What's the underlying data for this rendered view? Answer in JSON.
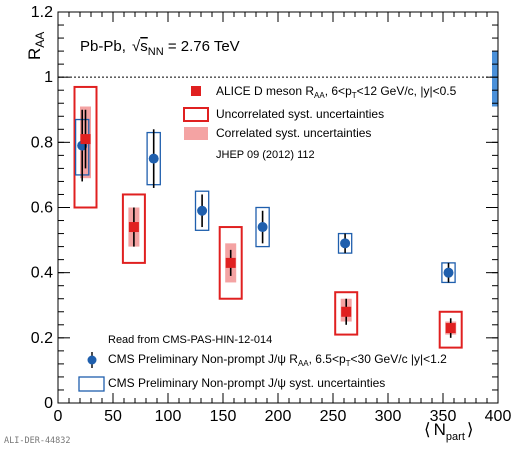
{
  "chart_data": {
    "type": "scatter",
    "annotation": "Pb-Pb, √sNN = 2.76 TeV",
    "annotation_parts": {
      "pre": "Pb-Pb, ",
      "s": "s",
      "nn": "NN",
      "post": " = 2.76 TeV"
    },
    "ylabel": {
      "main": "R",
      "sub": "AA"
    },
    "xlabel": {
      "lang": "⟨",
      "main": "N",
      "sub": "part",
      "rang": "⟩"
    },
    "xlim": [
      0,
      400
    ],
    "ylim": [
      0,
      1.2
    ],
    "x_ticks": [
      "0",
      "50",
      "100",
      "150",
      "200",
      "250",
      "300",
      "350",
      "400"
    ],
    "y_ticks": [
      "0",
      "0.2",
      "0.4",
      "0.6",
      "0.8",
      "1",
      "1.2"
    ],
    "reference_line": 1,
    "series": [
      {
        "name": "ALICE D meson R_AA, 6<pT<12 GeV/c, |y|<0.5",
        "marker": "square",
        "color": "#e02020",
        "x": [
          25,
          69,
          157,
          262,
          357
        ],
        "y": [
          0.81,
          0.54,
          0.43,
          0.28,
          0.23
        ],
        "stat_err": [
          0.09,
          0.06,
          0.04,
          0.04,
          0.03
        ],
        "uncorr_syst_box": {
          "half_width": [
            10,
            10,
            10,
            10,
            10
          ],
          "lo": [
            0.6,
            0.43,
            0.32,
            0.21,
            0.17
          ],
          "hi": [
            0.97,
            0.64,
            0.54,
            0.34,
            0.28
          ]
        },
        "corr_syst_box": {
          "half_width": [
            5,
            5,
            5,
            5,
            5
          ],
          "lo": [
            0.69,
            0.48,
            0.37,
            0.25,
            0.21
          ],
          "hi": [
            0.91,
            0.6,
            0.49,
            0.32,
            0.25
          ]
        }
      },
      {
        "name": "CMS Preliminary Non-prompt J/ψ R_AA, 6.5<pT<30 GeV/c |y|<1.2",
        "marker": "circle",
        "color": "#1f5fad",
        "x": [
          22,
          87,
          131,
          186,
          261,
          355
        ],
        "y": [
          0.79,
          0.75,
          0.59,
          0.54,
          0.49,
          0.4
        ],
        "stat_err": [
          0.11,
          0.09,
          0.05,
          0.05,
          0.03,
          0.03
        ],
        "syst_box": {
          "half_width": [
            6,
            6,
            6,
            6,
            6,
            6
          ],
          "lo": [
            0.7,
            0.67,
            0.53,
            0.48,
            0.46,
            0.37
          ],
          "hi": [
            0.87,
            0.83,
            0.65,
            0.6,
            0.52,
            0.43
          ]
        }
      }
    ],
    "legend_top": {
      "entries": [
        {
          "key": "ALICE D meson R",
          "parts": {
            "pre": "ALICE D meson R",
            "sub1": "AA",
            "mid": ", 6<p",
            "sub2": "T",
            "post": "<12 GeV/c, |y|<0.5"
          }
        },
        {
          "key": "uncorr",
          "label": "Uncorrelated syst. uncertainties"
        },
        {
          "key": "corr",
          "label": "Correlated syst. uncertainties"
        }
      ],
      "reference": "JHEP 09 (2012) 112"
    },
    "legend_bottom": {
      "note": "Read from CMS-PAS-HIN-12-014",
      "entries": [
        {
          "key": "cms",
          "parts": {
            "pre": "CMS Preliminary Non-prompt J/ψ R",
            "sub1": "AA",
            "mid": ", 6.5<p",
            "sub2": "T",
            "post": "<30 GeV/c |y|<1.2"
          }
        },
        {
          "key": "cms_syst",
          "label": "CMS Preliminary Non-prompt J/ψ syst. uncertainties"
        }
      ]
    },
    "global_uncertainty_box": {
      "y_lo": 0.91,
      "y_hi": 1.08,
      "color": "#4a90d9"
    },
    "watermark": "ALI-DER-44832"
  }
}
